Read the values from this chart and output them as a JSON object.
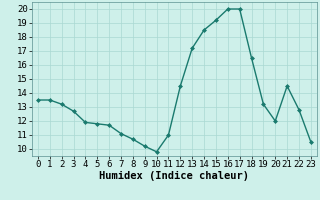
{
  "x": [
    0,
    1,
    2,
    3,
    4,
    5,
    6,
    7,
    8,
    9,
    10,
    11,
    12,
    13,
    14,
    15,
    16,
    17,
    18,
    19,
    20,
    21,
    22,
    23
  ],
  "y": [
    13.5,
    13.5,
    13.2,
    12.7,
    11.9,
    11.8,
    11.7,
    11.1,
    10.7,
    10.2,
    9.8,
    11.0,
    14.5,
    17.2,
    18.5,
    19.2,
    20.0,
    20.0,
    16.5,
    13.2,
    12.0,
    14.5,
    12.8,
    10.5
  ],
  "line_color": "#1a7a6e",
  "marker": "D",
  "marker_size": 2,
  "bg_color": "#cef0ea",
  "grid_color": "#aad8d2",
  "xlabel": "Humidex (Indice chaleur)",
  "ylim": [
    9.5,
    20.5
  ],
  "xlim": [
    -0.5,
    23.5
  ],
  "yticks": [
    10,
    11,
    12,
    13,
    14,
    15,
    16,
    17,
    18,
    19,
    20
  ],
  "xticks": [
    0,
    1,
    2,
    3,
    4,
    5,
    6,
    7,
    8,
    9,
    10,
    11,
    12,
    13,
    14,
    15,
    16,
    17,
    18,
    19,
    20,
    21,
    22,
    23
  ],
  "tick_fontsize": 6.5,
  "xlabel_fontsize": 7.5,
  "linewidth": 1.0
}
